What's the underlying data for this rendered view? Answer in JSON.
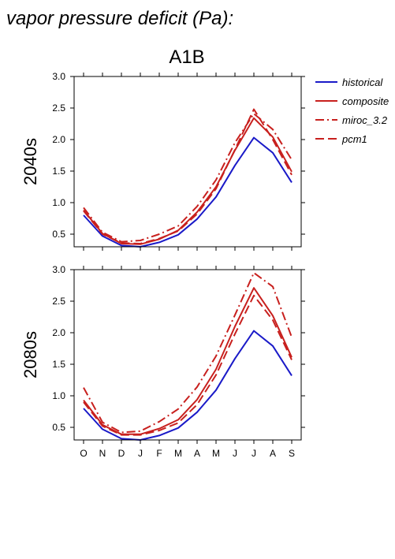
{
  "page_title": "vapor pressure deficit (Pa):",
  "panel_title": "A1B",
  "colors": {
    "historical": "#1a1ac8",
    "projection": "#c8201e",
    "axis": "#000000"
  },
  "legend": [
    {
      "key": "historical",
      "label": "historical",
      "dash": "solid",
      "color": "#1a1ac8"
    },
    {
      "key": "composite",
      "label": "composite",
      "dash": "solid",
      "color": "#c8201e"
    },
    {
      "key": "miroc_3.2",
      "label": "miroc_3.2",
      "dash": "dashdot",
      "color": "#c8201e"
    },
    {
      "key": "pcm1",
      "label": "pcm1",
      "dash": "dash",
      "color": "#c8201e"
    }
  ],
  "chart_data": [
    {
      "type": "line",
      "row_label": "2040s",
      "categories": [
        "O",
        "N",
        "D",
        "J",
        "F",
        "M",
        "A",
        "M",
        "J",
        "J",
        "A",
        "S"
      ],
      "y_ticks": [
        "3.0",
        "2.5",
        "2.0",
        "1.5",
        "1.0",
        "0.5"
      ],
      "ylim": [
        0.3,
        3.0
      ],
      "series": [
        {
          "name": "historical",
          "dash": "solid",
          "color": "#1a1ac8",
          "values": [
            0.8,
            0.47,
            0.32,
            0.3,
            0.37,
            0.49,
            0.74,
            1.09,
            1.59,
            2.03,
            1.79,
            1.32
          ]
        },
        {
          "name": "composite",
          "dash": "solid",
          "color": "#c8201e",
          "values": [
            0.88,
            0.51,
            0.35,
            0.34,
            0.42,
            0.56,
            0.85,
            1.25,
            1.83,
            2.34,
            2.04,
            1.49
          ]
        },
        {
          "name": "miroc_3.2",
          "dash": "dashdot",
          "color": "#c8201e",
          "values": [
            0.92,
            0.53,
            0.38,
            0.4,
            0.5,
            0.63,
            0.94,
            1.36,
            1.95,
            2.41,
            2.16,
            1.68
          ]
        },
        {
          "name": "pcm1",
          "dash": "dash",
          "color": "#c8201e",
          "values": [
            0.87,
            0.5,
            0.36,
            0.35,
            0.43,
            0.55,
            0.82,
            1.22,
            1.84,
            2.48,
            2.0,
            1.44
          ]
        }
      ]
    },
    {
      "type": "line",
      "row_label": "2080s",
      "categories": [
        "O",
        "N",
        "D",
        "J",
        "F",
        "M",
        "A",
        "M",
        "J",
        "J",
        "A",
        "S"
      ],
      "x_tick_labels": [
        "O",
        "N",
        "D",
        "J",
        "F",
        "M",
        "A",
        "M",
        "J",
        "J",
        "A",
        "S"
      ],
      "y_ticks": [
        "3.0",
        "2.5",
        "2.0",
        "1.5",
        "1.0",
        "0.5"
      ],
      "ylim": [
        0.3,
        3.0
      ],
      "series": [
        {
          "name": "historical",
          "dash": "solid",
          "color": "#1a1ac8",
          "values": [
            0.8,
            0.47,
            0.32,
            0.3,
            0.37,
            0.49,
            0.74,
            1.09,
            1.59,
            2.03,
            1.79,
            1.32
          ]
        },
        {
          "name": "composite",
          "dash": "solid",
          "color": "#c8201e",
          "values": [
            0.93,
            0.54,
            0.39,
            0.39,
            0.48,
            0.62,
            0.94,
            1.42,
            2.1,
            2.71,
            2.27,
            1.61
          ]
        },
        {
          "name": "miroc_3.2",
          "dash": "dashdot",
          "color": "#c8201e",
          "values": [
            1.13,
            0.58,
            0.42,
            0.44,
            0.59,
            0.79,
            1.14,
            1.63,
            2.28,
            2.95,
            2.73,
            1.93
          ]
        },
        {
          "name": "pcm1",
          "dash": "dash",
          "color": "#c8201e",
          "values": [
            0.9,
            0.52,
            0.38,
            0.38,
            0.45,
            0.57,
            0.86,
            1.33,
            1.98,
            2.59,
            2.2,
            1.57
          ]
        }
      ]
    }
  ]
}
